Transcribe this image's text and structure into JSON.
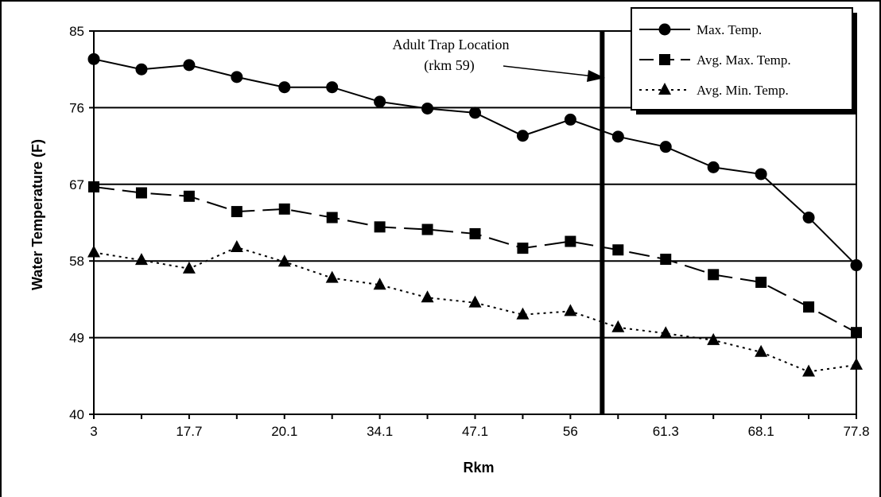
{
  "chart_data": {
    "type": "line",
    "title": "",
    "xlabel": "Rkm",
    "ylabel": "Water Temperature (F)",
    "ylim": [
      40,
      85
    ],
    "yticks": [
      40,
      49,
      58,
      67,
      76,
      85
    ],
    "xtick_labels": [
      "3",
      "17.7",
      "20.1",
      "34.1",
      "47.1",
      "56",
      "61.3",
      "68.1",
      "77.8"
    ],
    "grid": "horizontal",
    "legend_position": "top-right",
    "annotation": {
      "line1": "Adult Trap Location",
      "line2": "(rkm 59)",
      "marker_index": 11
    },
    "series": [
      {
        "name": "Max. Temp.",
        "marker": "circle",
        "dash": "solid",
        "values": [
          81.7,
          80.5,
          81.0,
          79.6,
          78.4,
          78.4,
          76.7,
          75.9,
          75.4,
          72.7,
          74.6,
          72.6,
          71.4,
          69.0,
          68.2,
          63.1,
          57.5
        ]
      },
      {
        "name": "Avg. Max. Temp.",
        "marker": "square",
        "dash": "dashed",
        "values": [
          66.7,
          66.0,
          65.6,
          63.8,
          64.1,
          63.1,
          62.0,
          61.7,
          61.2,
          59.5,
          60.3,
          59.3,
          58.2,
          56.4,
          55.5,
          52.6,
          49.6
        ]
      },
      {
        "name": "Avg. Min. Temp.",
        "marker": "triangle",
        "dash": "dotted",
        "values": [
          59.0,
          58.1,
          57.1,
          59.6,
          57.9,
          56.0,
          55.2,
          53.7,
          53.1,
          51.7,
          52.1,
          50.2,
          49.5,
          48.7,
          47.3,
          45.0,
          45.8
        ]
      }
    ]
  }
}
